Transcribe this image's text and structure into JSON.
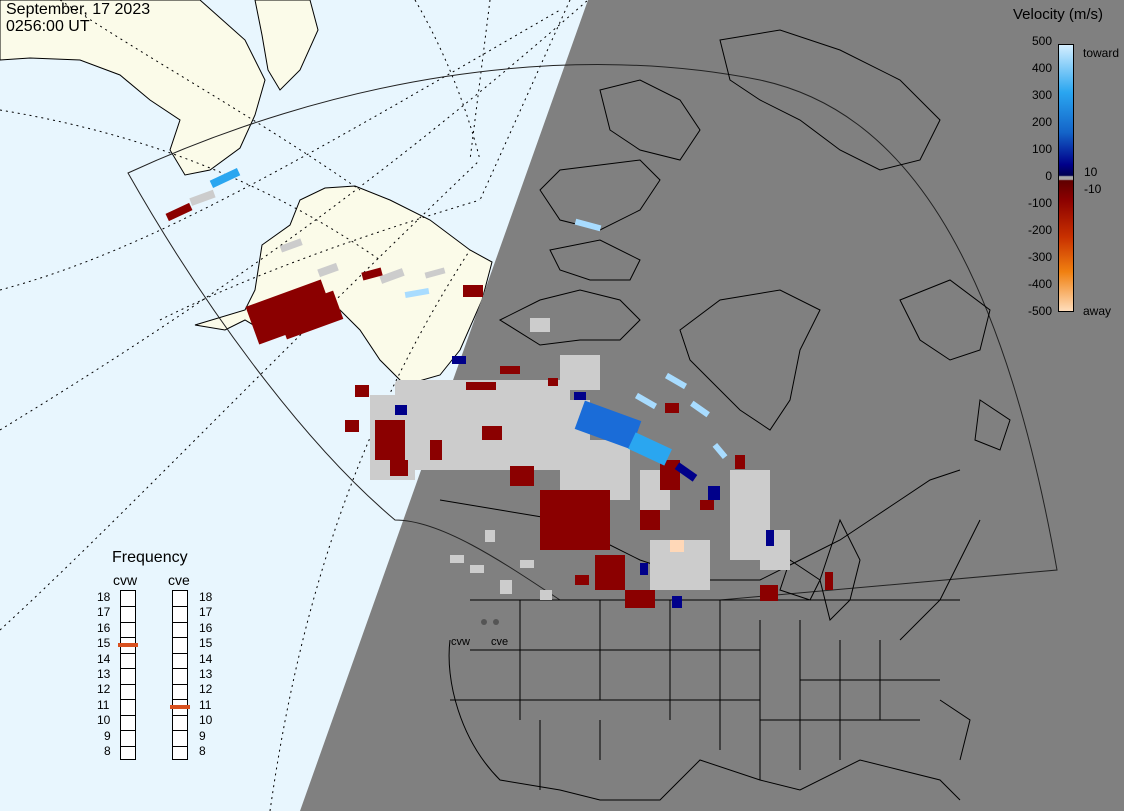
{
  "header": {
    "date": "September, 17 2023",
    "time": "0256:00 UT"
  },
  "colorbar": {
    "title": "Velocity (m/s)",
    "toward_label": "toward",
    "away_label": "away",
    "ticks": [
      "500",
      "400",
      "300",
      "200",
      "100",
      "0",
      "-100",
      "-200",
      "-300",
      "-400",
      "-500"
    ],
    "side_ticks": [
      "10",
      "-10"
    ]
  },
  "frequency": {
    "title": "Frequency",
    "radars": [
      {
        "name": "cvw",
        "freq_mhz": 15
      },
      {
        "name": "cve",
        "freq_mhz": 11
      }
    ],
    "scale_min": 8,
    "scale_max": 18,
    "scale_labels": [
      "18",
      "17",
      "16",
      "15",
      "14",
      "13",
      "12",
      "11",
      "10",
      "9",
      "8"
    ]
  },
  "radar_sites": [
    "cvw",
    "cve"
  ],
  "colors": {
    "ocean": "#e8f6fe",
    "land_day": "#fbfbe9",
    "night": "#808080",
    "no_scatter": "#cccccc",
    "away_dark": "#8b0000",
    "toward_blue": "#0050c0",
    "frequency_marker": "#d8501e"
  }
}
